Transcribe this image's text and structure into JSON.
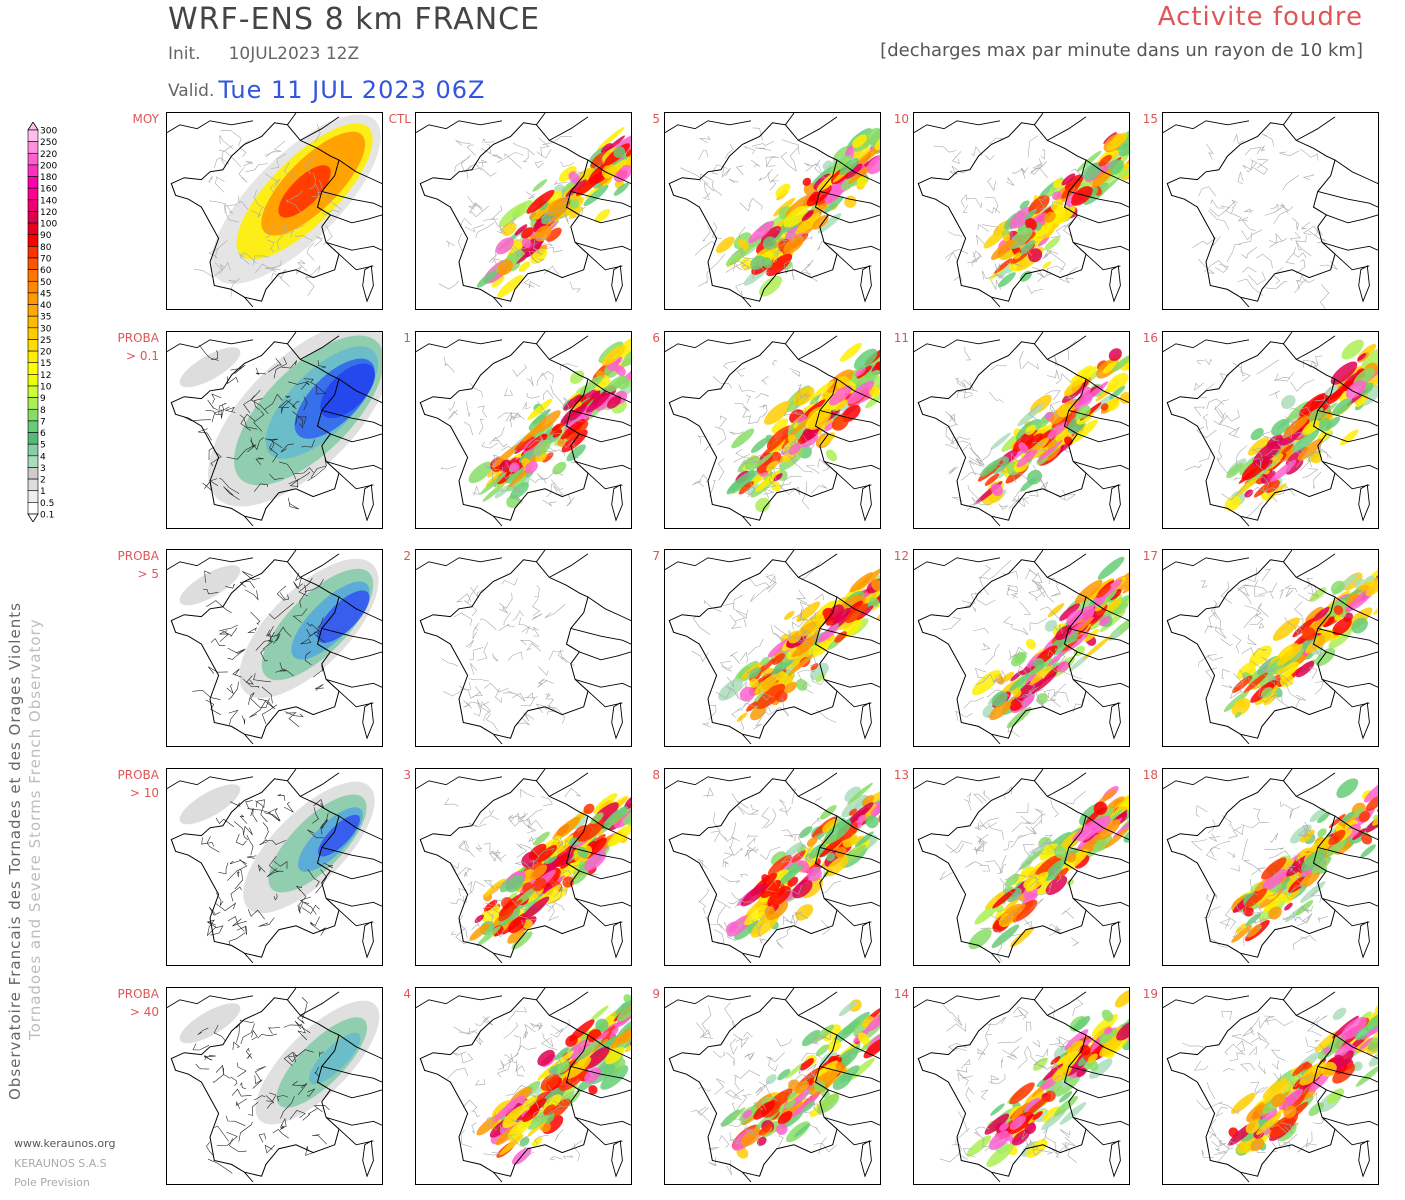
{
  "header": {
    "title": "WRF-ENS 8 km FRANCE",
    "init_label": "Init.",
    "init_value": "10JUL2023 12Z",
    "valid_label": "Valid.",
    "valid_value": "Tue 11 JUL 2023 06Z",
    "product_title": "Activite foudre",
    "product_subtitle": "[decharges max par minute dans un rayon de 10 km]"
  },
  "legend": {
    "values": [
      "300",
      "250",
      "220",
      "200",
      "180",
      "160",
      "140",
      "120",
      "100",
      "90",
      "80",
      "70",
      "60",
      "50",
      "45",
      "40",
      "35",
      "30",
      "25",
      "20",
      "15",
      "12",
      "10",
      "9",
      "8",
      "7",
      "6",
      "5",
      "4",
      "3",
      "2",
      "1",
      "0.5",
      "0.1"
    ],
    "colors": [
      "#ffc0ee",
      "#ff90e0",
      "#ff60d0",
      "#ff30c0",
      "#ff00b0",
      "#ff0090",
      "#f00070",
      "#e00050",
      "#e80020",
      "#ff0000",
      "#ff3300",
      "#ff5500",
      "#ff7700",
      "#ff8800",
      "#ff9900",
      "#ffaa00",
      "#ffbb00",
      "#ffcc00",
      "#ffdd00",
      "#ffee00",
      "#ffff00",
      "#eeff00",
      "#ccff33",
      "#aaee55",
      "#88dd66",
      "#66cc77",
      "#55bb77",
      "#88ccaa",
      "#aaddbb",
      "#cccccc",
      "#dddddd",
      "#eeeeee",
      "#ffffff"
    ]
  },
  "rows": [
    {
      "label": "MOY",
      "sublabel": ""
    },
    {
      "label": "PROBA",
      "sublabel": "> 0.1"
    },
    {
      "label": "PROBA",
      "sublabel": "> 5"
    },
    {
      "label": "PROBA",
      "sublabel": "> 10"
    },
    {
      "label": "PROBA",
      "sublabel": "> 40"
    }
  ],
  "member_labels": [
    [
      "CTL",
      "5",
      "10",
      "15"
    ],
    [
      "1",
      "6",
      "11",
      "16"
    ],
    [
      "2",
      "7",
      "12",
      "17"
    ],
    [
      "3",
      "8",
      "13",
      "18"
    ],
    [
      "4",
      "9",
      "14",
      "19"
    ]
  ],
  "footer": {
    "vertical_credit": "Observatoire Francais des Tornades et des Orages Violents",
    "vertical_credit_en": "Tornadoes and Severe Storms French Observatory",
    "site": "www.keraunos.org",
    "company": "KERAUNOS S.A.S",
    "department": "Pole Prevision"
  }
}
